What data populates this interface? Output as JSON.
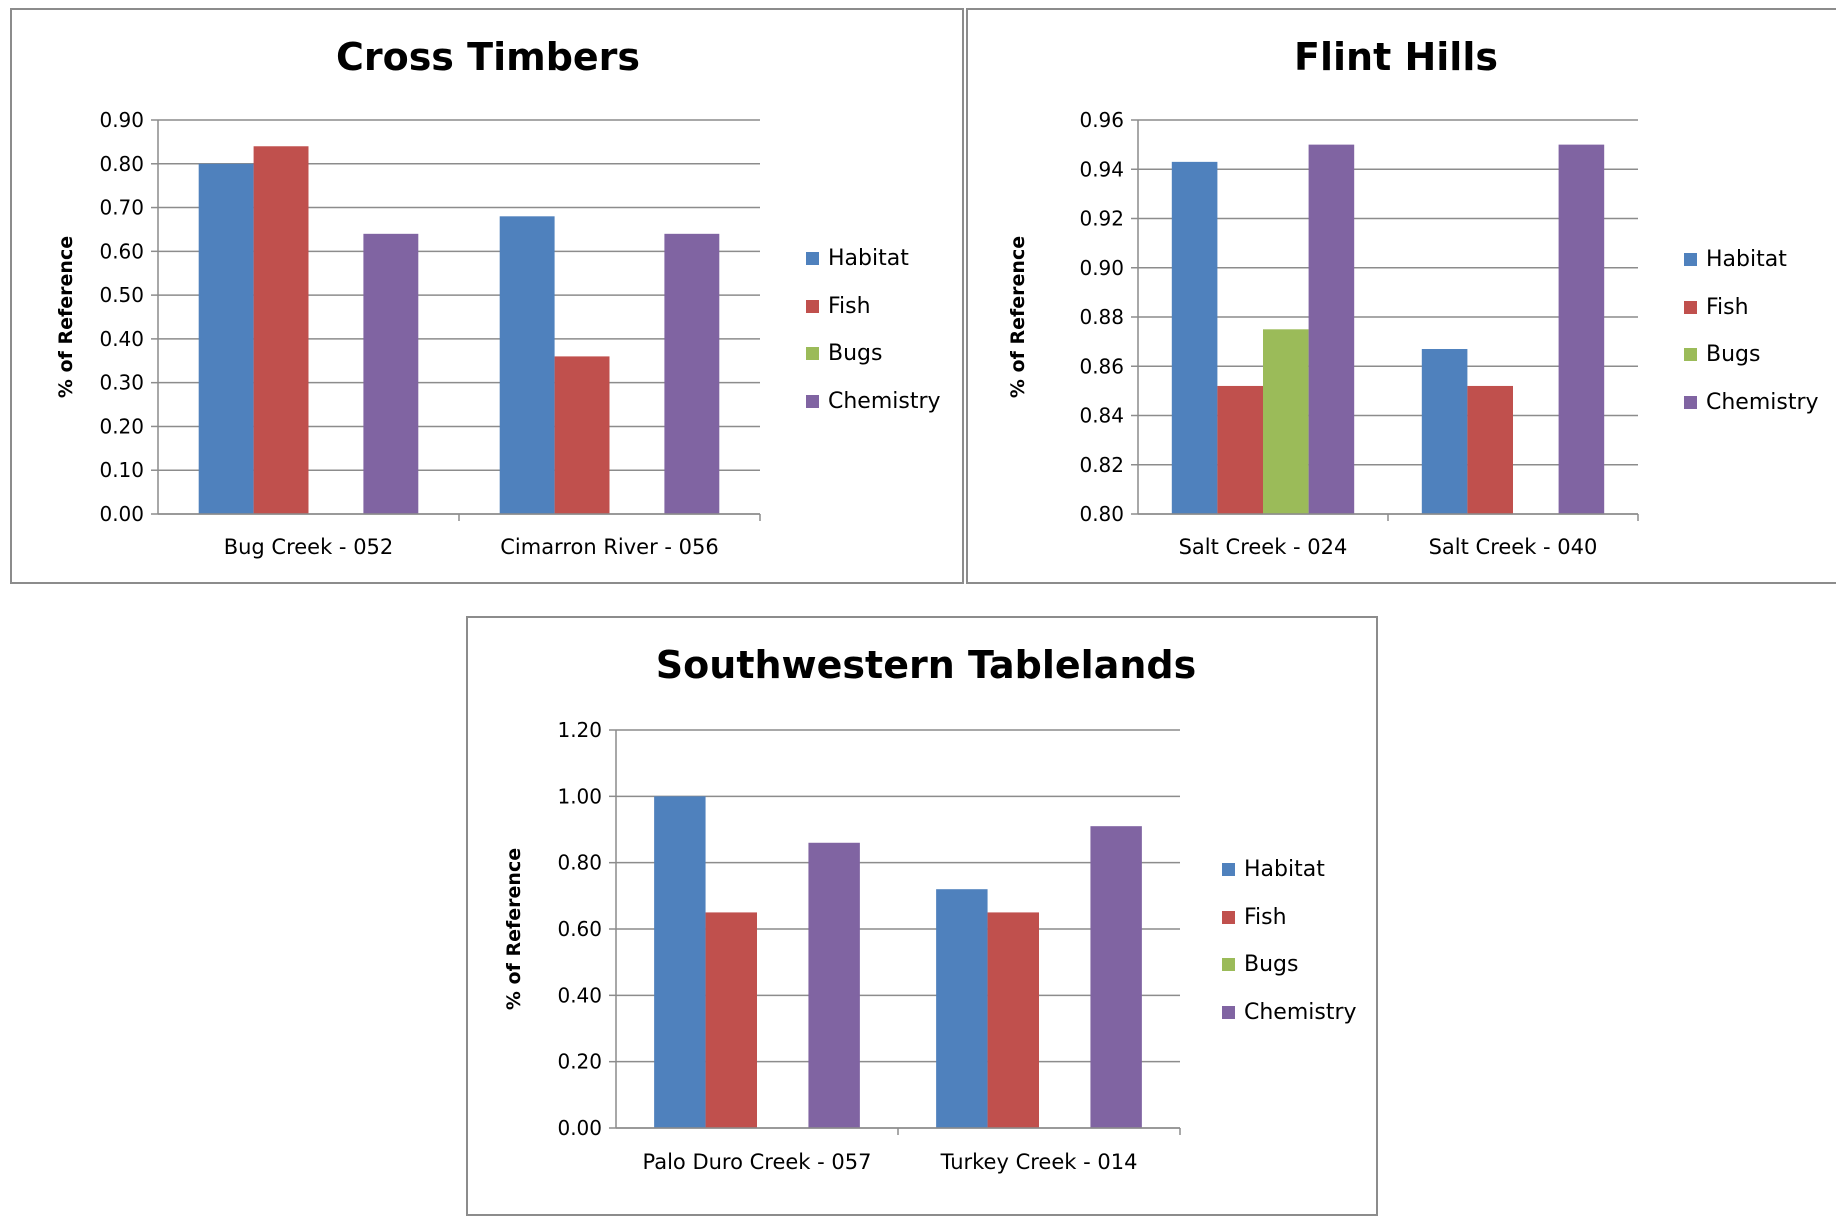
{
  "chart_data": [
    {
      "type": "bar",
      "title": "Cross Timbers",
      "ylabel": "% of Reference",
      "xlabel": "",
      "categories": [
        "Bug Creek - 052",
        "Cimarron River - 056"
      ],
      "series": [
        {
          "name": "Habitat",
          "color": "#4F81BD",
          "values": [
            0.8,
            0.68
          ]
        },
        {
          "name": "Fish",
          "color": "#C0504D",
          "values": [
            0.84,
            0.36
          ]
        },
        {
          "name": "Bugs",
          "color": "#9BBB59",
          "values": [
            null,
            null
          ]
        },
        {
          "name": "Chemistry",
          "color": "#8064A2",
          "values": [
            0.64,
            0.64
          ]
        }
      ],
      "ylim": [
        0,
        0.9
      ],
      "yticks": [
        "0.00",
        "0.10",
        "0.20",
        "0.30",
        "0.40",
        "0.50",
        "0.60",
        "0.70",
        "0.80",
        "0.90"
      ],
      "grid": true,
      "legend": "right"
    },
    {
      "type": "bar",
      "title": "Flint Hills",
      "ylabel": "% of Reference",
      "xlabel": "",
      "categories": [
        "Salt Creek - 024",
        "Salt Creek - 040"
      ],
      "series": [
        {
          "name": "Habitat",
          "color": "#4F81BD",
          "values": [
            0.943,
            0.867
          ]
        },
        {
          "name": "Fish",
          "color": "#C0504D",
          "values": [
            0.852,
            0.852
          ]
        },
        {
          "name": "Bugs",
          "color": "#9BBB59",
          "values": [
            0.875,
            null
          ]
        },
        {
          "name": "Chemistry",
          "color": "#8064A2",
          "values": [
            0.95,
            0.95
          ]
        }
      ],
      "ylim": [
        0.8,
        0.96
      ],
      "yticks": [
        "0.80",
        "0.82",
        "0.84",
        "0.86",
        "0.88",
        "0.90",
        "0.92",
        "0.94",
        "0.96"
      ],
      "grid": true,
      "legend": "right"
    },
    {
      "type": "bar",
      "title": "Southwestern Tablelands",
      "ylabel": "% of Reference",
      "xlabel": "",
      "categories": [
        "Palo Duro Creek - 057",
        "Turkey Creek - 014"
      ],
      "series": [
        {
          "name": "Habitat",
          "color": "#4F81BD",
          "values": [
            1.0,
            0.72
          ]
        },
        {
          "name": "Fish",
          "color": "#C0504D",
          "values": [
            0.65,
            0.65
          ]
        },
        {
          "name": "Bugs",
          "color": "#9BBB59",
          "values": [
            null,
            null
          ]
        },
        {
          "name": "Chemistry",
          "color": "#8064A2",
          "values": [
            0.86,
            0.91
          ]
        }
      ],
      "ylim": [
        0,
        1.2
      ],
      "yticks": [
        "0.00",
        "0.20",
        "0.40",
        "0.60",
        "0.80",
        "1.00",
        "1.20"
      ],
      "grid": true,
      "legend": "right"
    }
  ]
}
